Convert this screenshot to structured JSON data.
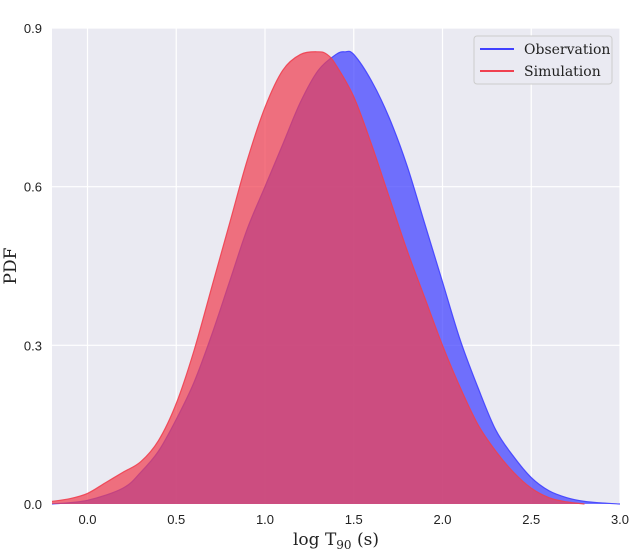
{
  "chart_data": {
    "type": "area",
    "xlabel": "log T",
    "xlabel_subscript": "90",
    "xlabel_unit": " (s)",
    "ylabel": "PDF",
    "xlim": [
      -0.2,
      3.0
    ],
    "ylim": [
      0,
      0.9
    ],
    "xticks": [
      0.0,
      0.5,
      1.0,
      1.5,
      2.0,
      2.5,
      3.0
    ],
    "xtick_labels": [
      "0.0",
      "0.5",
      "1.0",
      "1.5",
      "2.0",
      "2.5",
      "3.0"
    ],
    "yticks": [
      0.0,
      0.3,
      0.6,
      0.9
    ],
    "ytick_labels": [
      "0.0",
      "0.3",
      "0.6",
      "0.9"
    ],
    "grid": true,
    "legend_position": "top-right",
    "series": [
      {
        "name": "Observation",
        "color": "#4040ff",
        "x": [
          -0.2,
          0.0,
          0.2,
          0.3,
          0.4,
          0.5,
          0.6,
          0.7,
          0.8,
          0.9,
          1.0,
          1.1,
          1.2,
          1.3,
          1.4,
          1.45,
          1.5,
          1.6,
          1.7,
          1.8,
          1.9,
          2.0,
          2.1,
          2.2,
          2.3,
          2.4,
          2.5,
          2.6,
          2.7,
          2.8,
          2.9,
          3.0
        ],
        "y": [
          0.0,
          0.007,
          0.03,
          0.06,
          0.1,
          0.16,
          0.23,
          0.32,
          0.42,
          0.52,
          0.6,
          0.68,
          0.76,
          0.82,
          0.85,
          0.855,
          0.85,
          0.8,
          0.73,
          0.64,
          0.53,
          0.42,
          0.31,
          0.22,
          0.14,
          0.09,
          0.05,
          0.025,
          0.012,
          0.005,
          0.002,
          0.0
        ]
      },
      {
        "name": "Simulation",
        "color": "#f04050",
        "x": [
          -0.2,
          -0.1,
          0.0,
          0.1,
          0.2,
          0.3,
          0.4,
          0.5,
          0.6,
          0.7,
          0.8,
          0.9,
          1.0,
          1.1,
          1.2,
          1.3,
          1.35,
          1.4,
          1.5,
          1.6,
          1.7,
          1.8,
          1.9,
          2.0,
          2.1,
          2.2,
          2.3,
          2.4,
          2.5,
          2.6,
          2.7,
          2.8
        ],
        "y": [
          0.005,
          0.01,
          0.02,
          0.04,
          0.06,
          0.08,
          0.12,
          0.19,
          0.29,
          0.41,
          0.53,
          0.65,
          0.75,
          0.82,
          0.85,
          0.855,
          0.85,
          0.83,
          0.77,
          0.68,
          0.58,
          0.48,
          0.39,
          0.3,
          0.22,
          0.15,
          0.1,
          0.06,
          0.03,
          0.012,
          0.004,
          0.0
        ]
      }
    ]
  }
}
